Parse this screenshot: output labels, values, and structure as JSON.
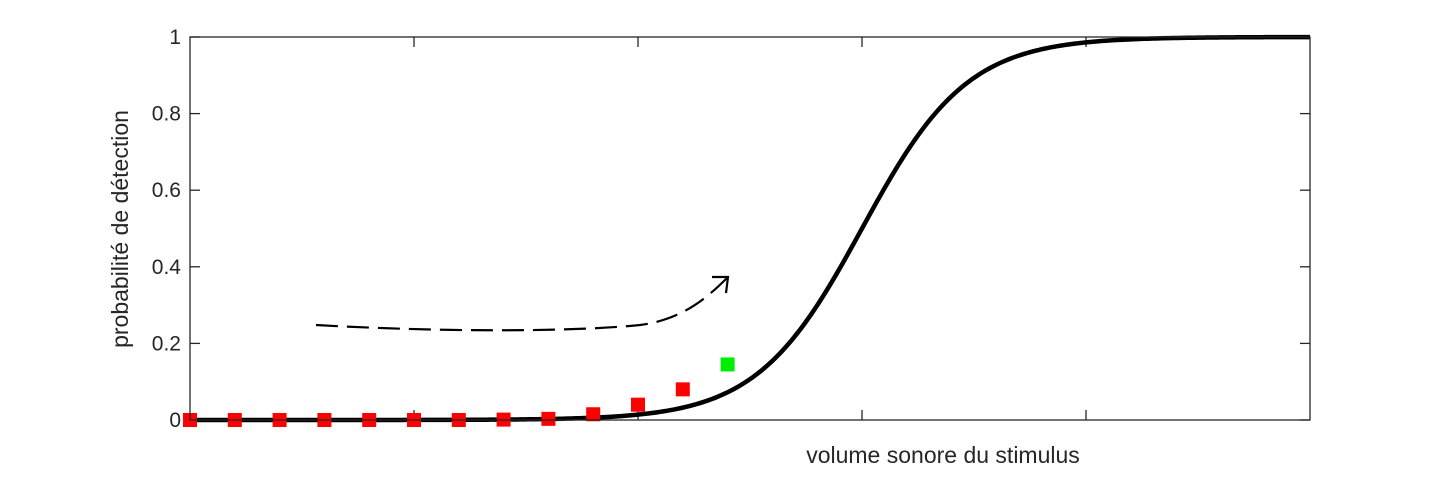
{
  "chart_data": {
    "type": "line",
    "title": "",
    "xlabel": "volume sonore du stimulus",
    "ylabel": "probabilité de détection",
    "xlim": [
      0,
      25
    ],
    "ylim": [
      0,
      1
    ],
    "y_ticks": [
      "0",
      "0.2",
      "0.4",
      "0.6",
      "0.8",
      "1"
    ],
    "x_tick_values": [
      5,
      10,
      15,
      20
    ],
    "x_tick_labels_shown": false,
    "grid": false,
    "legend": "none",
    "curve": {
      "model": "logistic",
      "midpoint": 15,
      "slope": 0.85,
      "color": "#000000"
    },
    "points": {
      "x": [
        0,
        1,
        2,
        3,
        4,
        5,
        6,
        7,
        8,
        9,
        10,
        11,
        12
      ],
      "y": [
        0,
        0,
        0,
        0,
        0,
        0,
        0,
        0.001,
        0.003,
        0.015,
        0.04,
        0.08,
        0.145
      ],
      "colors": [
        "#ff0000",
        "#ff0000",
        "#ff0000",
        "#ff0000",
        "#ff0000",
        "#ff0000",
        "#ff0000",
        "#ff0000",
        "#ff0000",
        "#ff0000",
        "#ff0000",
        "#ff0000",
        "#00ee00"
      ]
    },
    "annotation": {
      "type": "dashed-arrow",
      "meaning": "increasing stimulus volume along the staircase"
    }
  }
}
